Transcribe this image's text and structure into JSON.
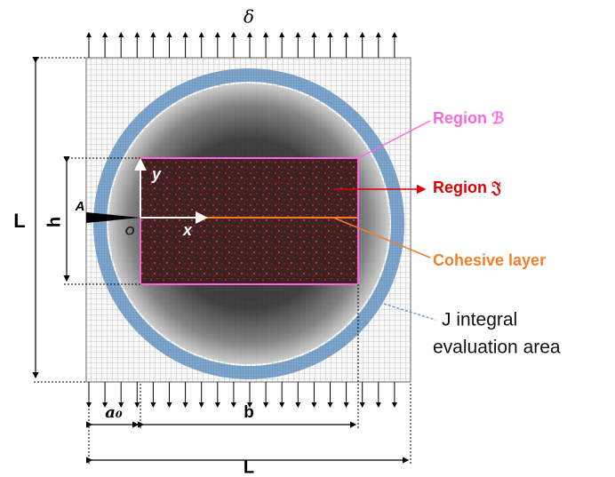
{
  "labels": {
    "top_load": "δ",
    "region_b": "Region ℬ",
    "region_j": "Region 𝔍",
    "cohesive": "Cohesive layer",
    "j_integral": [
      "J integral",
      "evaluation area"
    ],
    "left_length": "L",
    "height": "h",
    "crack_tip": "A",
    "origin": "O",
    "x_axis": "x",
    "y_axis": "y",
    "crack_length": "a₀",
    "ligament": "b",
    "bottom_length": "L"
  }
}
